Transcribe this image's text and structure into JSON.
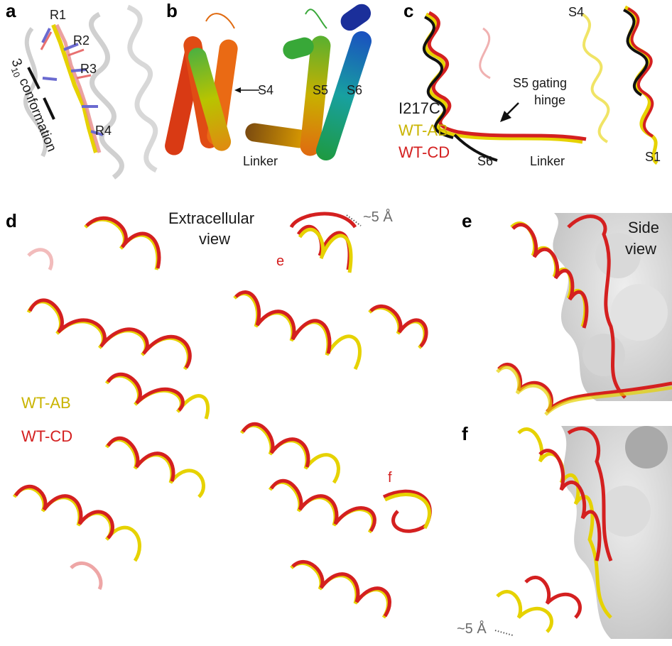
{
  "panels": {
    "a": {
      "letter": "a",
      "residues": [
        "R1",
        "R2",
        "R3",
        "R4"
      ],
      "conformation_num": "3",
      "conformation_sub": "10",
      "conformation_word": " conformation"
    },
    "b": {
      "letter": "b",
      "labels": {
        "s4": "S4",
        "s5": "S5",
        "s6": "S6",
        "linker": "Linker"
      }
    },
    "c": {
      "letter": "c",
      "labels": {
        "s4": "S4",
        "s1": "S1",
        "s6": "S6",
        "linker": "Linker",
        "hinge_line1": "S5 gating",
        "hinge_line2": "hinge"
      },
      "legend": [
        "I217C",
        "WT-AB",
        "WT-CD"
      ]
    },
    "d": {
      "letter": "d",
      "title_line1": "Extracellular",
      "title_line2": "view",
      "distance": "~5 Å",
      "marker_e": "e",
      "marker_f": "f",
      "legend": [
        "WT-AB",
        "WT-CD"
      ]
    },
    "e": {
      "letter": "e",
      "title_line1": "Side",
      "title_line2": "view"
    },
    "f": {
      "letter": "f",
      "distance": "~5 Å"
    }
  },
  "colors": {
    "wt_ab": "#e6d200",
    "wt_cd": "#d42020",
    "i217c": "#111111",
    "surface": "#cfcfcf"
  }
}
